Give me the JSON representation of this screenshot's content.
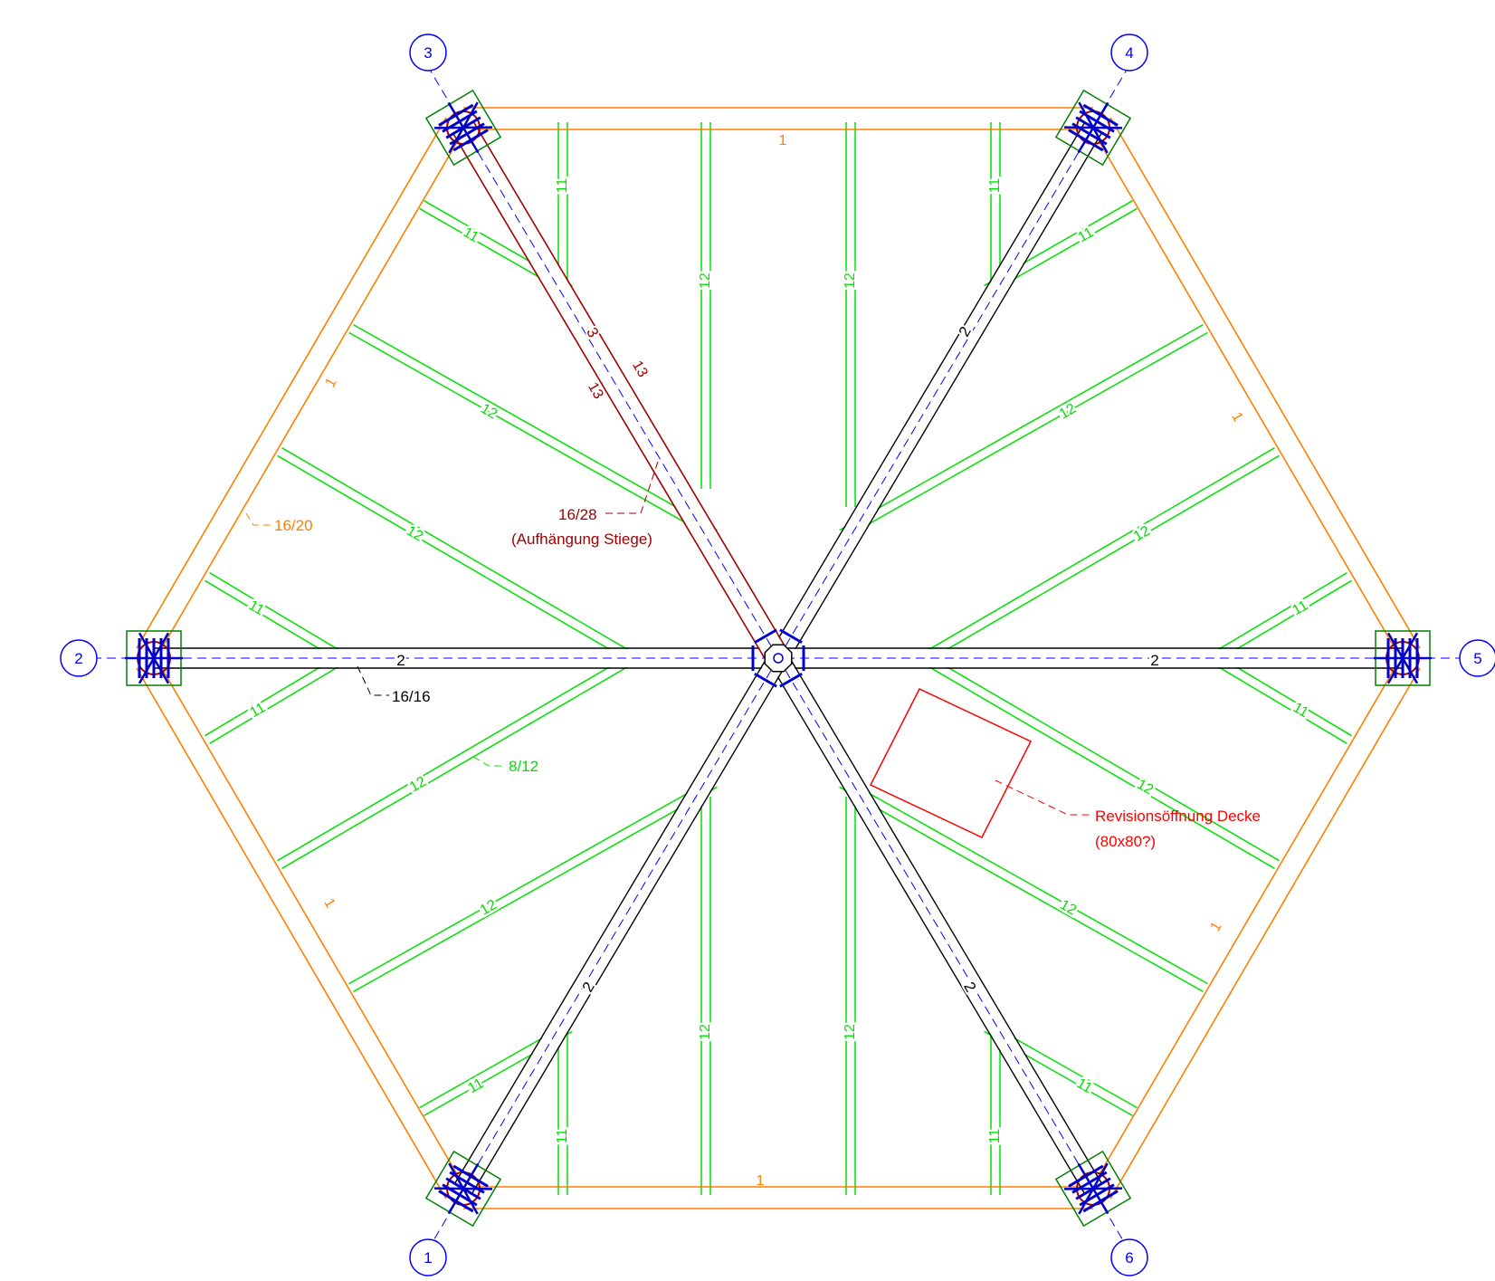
{
  "diagram": {
    "colors": {
      "ring_beam": "#ff7f00",
      "radial_beam": "#000000",
      "stair_beam": "#a00000",
      "joist": "#00e000",
      "axis": "#0000ff",
      "column": "#008000",
      "connector": "#0000c8",
      "opening": "#ff0000"
    },
    "axes": [
      {
        "id": "ax-1",
        "label": "1"
      },
      {
        "id": "ax-2",
        "label": "2"
      },
      {
        "id": "ax-3",
        "label": "3"
      },
      {
        "id": "ax-4",
        "label": "4"
      },
      {
        "id": "ax-5",
        "label": "5"
      },
      {
        "id": "ax-6",
        "label": "6"
      }
    ],
    "ring_beams": {
      "label": "1",
      "section": "16/20"
    },
    "radial_beams": {
      "label": "2",
      "section": "16/16"
    },
    "stair_beam": {
      "label": "3",
      "section": "16/28",
      "note": "(Aufhängung Stiege)",
      "side_label": "13"
    },
    "joists": {
      "label_short": "11",
      "label_long": "12",
      "section": "8/12"
    },
    "opening": {
      "title": "Revisionsöffnung Decke",
      "size": "(80x80?)"
    }
  }
}
